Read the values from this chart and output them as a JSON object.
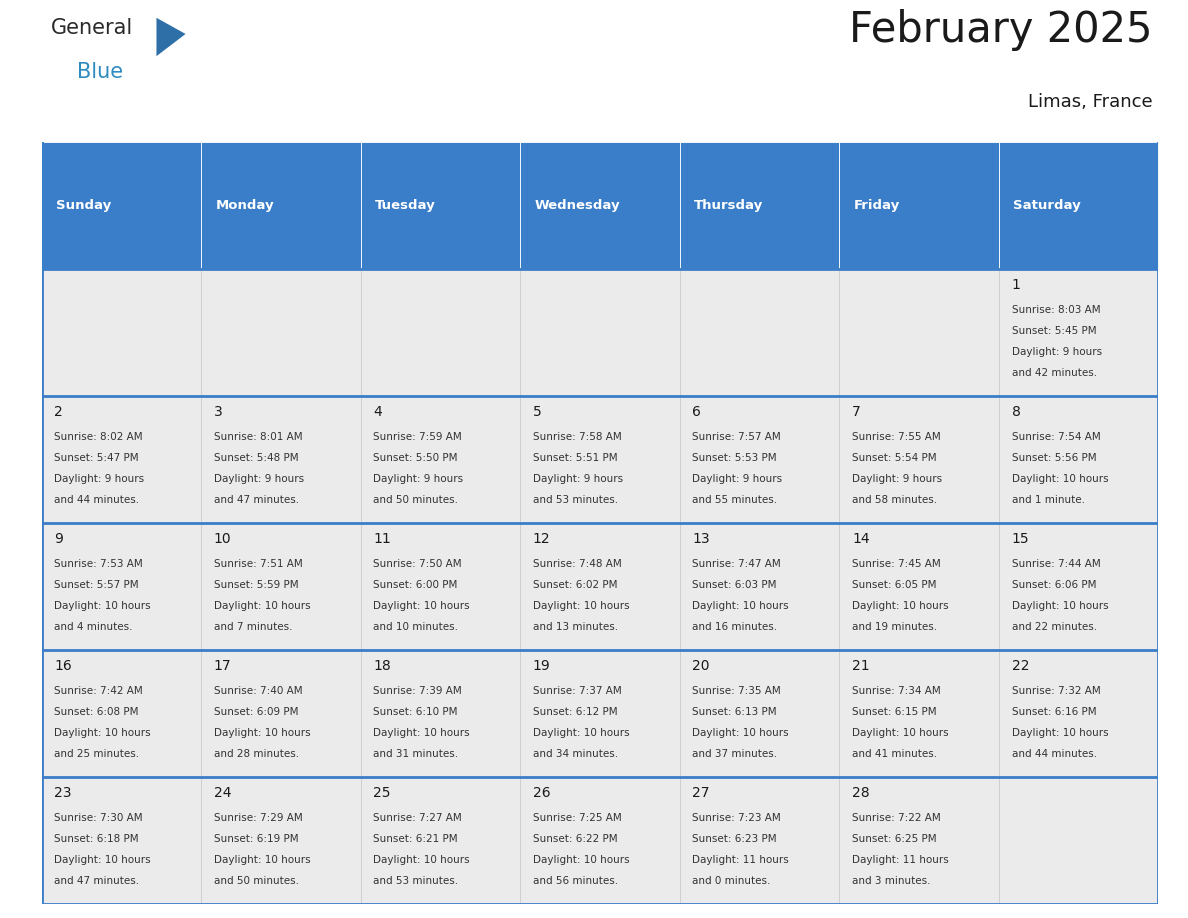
{
  "title": "February 2025",
  "subtitle": "Limas, France",
  "header_bg": "#3A7DC9",
  "header_text": "#FFFFFF",
  "cell_bg": "#EBEBEB",
  "cell_white": "#FFFFFF",
  "border_color": "#3A7DC9",
  "text_color": "#333333",
  "day_num_color": "#1a1a1a",
  "day_headers": [
    "Sunday",
    "Monday",
    "Tuesday",
    "Wednesday",
    "Thursday",
    "Friday",
    "Saturday"
  ],
  "days": [
    {
      "day": 1,
      "col": 6,
      "row": 0,
      "sunrise": "8:03 AM",
      "sunset": "5:45 PM",
      "daylight": "9 hours\nand 42 minutes."
    },
    {
      "day": 2,
      "col": 0,
      "row": 1,
      "sunrise": "8:02 AM",
      "sunset": "5:47 PM",
      "daylight": "9 hours\nand 44 minutes."
    },
    {
      "day": 3,
      "col": 1,
      "row": 1,
      "sunrise": "8:01 AM",
      "sunset": "5:48 PM",
      "daylight": "9 hours\nand 47 minutes."
    },
    {
      "day": 4,
      "col": 2,
      "row": 1,
      "sunrise": "7:59 AM",
      "sunset": "5:50 PM",
      "daylight": "9 hours\nand 50 minutes."
    },
    {
      "day": 5,
      "col": 3,
      "row": 1,
      "sunrise": "7:58 AM",
      "sunset": "5:51 PM",
      "daylight": "9 hours\nand 53 minutes."
    },
    {
      "day": 6,
      "col": 4,
      "row": 1,
      "sunrise": "7:57 AM",
      "sunset": "5:53 PM",
      "daylight": "9 hours\nand 55 minutes."
    },
    {
      "day": 7,
      "col": 5,
      "row": 1,
      "sunrise": "7:55 AM",
      "sunset": "5:54 PM",
      "daylight": "9 hours\nand 58 minutes."
    },
    {
      "day": 8,
      "col": 6,
      "row": 1,
      "sunrise": "7:54 AM",
      "sunset": "5:56 PM",
      "daylight": "10 hours\nand 1 minute."
    },
    {
      "day": 9,
      "col": 0,
      "row": 2,
      "sunrise": "7:53 AM",
      "sunset": "5:57 PM",
      "daylight": "10 hours\nand 4 minutes."
    },
    {
      "day": 10,
      "col": 1,
      "row": 2,
      "sunrise": "7:51 AM",
      "sunset": "5:59 PM",
      "daylight": "10 hours\nand 7 minutes."
    },
    {
      "day": 11,
      "col": 2,
      "row": 2,
      "sunrise": "7:50 AM",
      "sunset": "6:00 PM",
      "daylight": "10 hours\nand 10 minutes."
    },
    {
      "day": 12,
      "col": 3,
      "row": 2,
      "sunrise": "7:48 AM",
      "sunset": "6:02 PM",
      "daylight": "10 hours\nand 13 minutes."
    },
    {
      "day": 13,
      "col": 4,
      "row": 2,
      "sunrise": "7:47 AM",
      "sunset": "6:03 PM",
      "daylight": "10 hours\nand 16 minutes."
    },
    {
      "day": 14,
      "col": 5,
      "row": 2,
      "sunrise": "7:45 AM",
      "sunset": "6:05 PM",
      "daylight": "10 hours\nand 19 minutes."
    },
    {
      "day": 15,
      "col": 6,
      "row": 2,
      "sunrise": "7:44 AM",
      "sunset": "6:06 PM",
      "daylight": "10 hours\nand 22 minutes."
    },
    {
      "day": 16,
      "col": 0,
      "row": 3,
      "sunrise": "7:42 AM",
      "sunset": "6:08 PM",
      "daylight": "10 hours\nand 25 minutes."
    },
    {
      "day": 17,
      "col": 1,
      "row": 3,
      "sunrise": "7:40 AM",
      "sunset": "6:09 PM",
      "daylight": "10 hours\nand 28 minutes."
    },
    {
      "day": 18,
      "col": 2,
      "row": 3,
      "sunrise": "7:39 AM",
      "sunset": "6:10 PM",
      "daylight": "10 hours\nand 31 minutes."
    },
    {
      "day": 19,
      "col": 3,
      "row": 3,
      "sunrise": "7:37 AM",
      "sunset": "6:12 PM",
      "daylight": "10 hours\nand 34 minutes."
    },
    {
      "day": 20,
      "col": 4,
      "row": 3,
      "sunrise": "7:35 AM",
      "sunset": "6:13 PM",
      "daylight": "10 hours\nand 37 minutes."
    },
    {
      "day": 21,
      "col": 5,
      "row": 3,
      "sunrise": "7:34 AM",
      "sunset": "6:15 PM",
      "daylight": "10 hours\nand 41 minutes."
    },
    {
      "day": 22,
      "col": 6,
      "row": 3,
      "sunrise": "7:32 AM",
      "sunset": "6:16 PM",
      "daylight": "10 hours\nand 44 minutes."
    },
    {
      "day": 23,
      "col": 0,
      "row": 4,
      "sunrise": "7:30 AM",
      "sunset": "6:18 PM",
      "daylight": "10 hours\nand 47 minutes."
    },
    {
      "day": 24,
      "col": 1,
      "row": 4,
      "sunrise": "7:29 AM",
      "sunset": "6:19 PM",
      "daylight": "10 hours\nand 50 minutes."
    },
    {
      "day": 25,
      "col": 2,
      "row": 4,
      "sunrise": "7:27 AM",
      "sunset": "6:21 PM",
      "daylight": "10 hours\nand 53 minutes."
    },
    {
      "day": 26,
      "col": 3,
      "row": 4,
      "sunrise": "7:25 AM",
      "sunset": "6:22 PM",
      "daylight": "10 hours\nand 56 minutes."
    },
    {
      "day": 27,
      "col": 4,
      "row": 4,
      "sunrise": "7:23 AM",
      "sunset": "6:23 PM",
      "daylight": "11 hours\nand 0 minutes."
    },
    {
      "day": 28,
      "col": 5,
      "row": 4,
      "sunrise": "7:22 AM",
      "sunset": "6:25 PM",
      "daylight": "11 hours\nand 3 minutes."
    }
  ],
  "num_rows": 5,
  "logo_general_color": "#2a2a2a",
  "logo_blue_color": "#2E8BC0",
  "logo_triangle_color": "#2E6FA8",
  "fig_width": 11.88,
  "fig_height": 9.18
}
